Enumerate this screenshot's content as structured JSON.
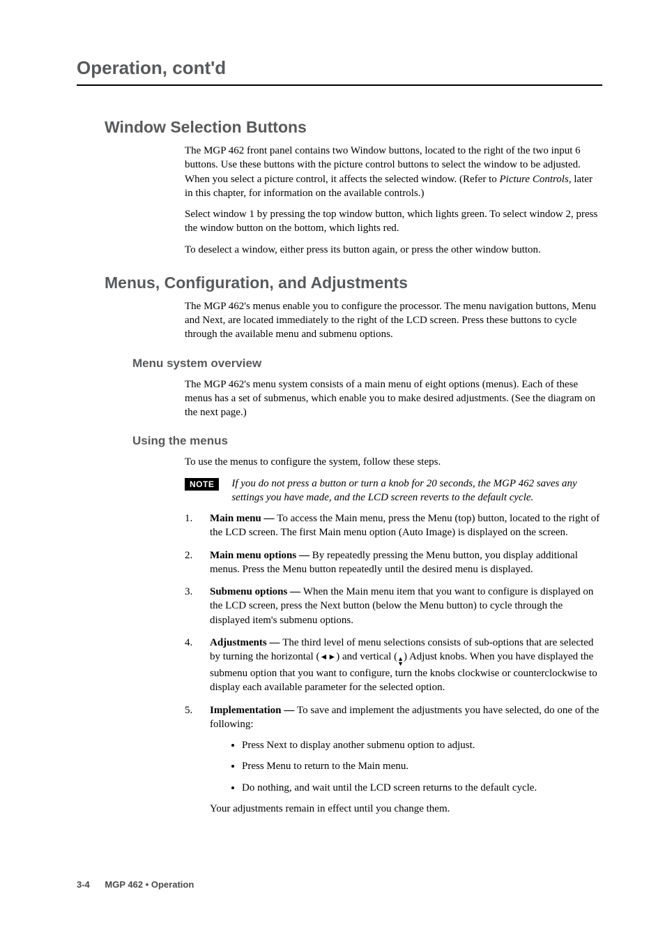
{
  "running_head": "Operation, cont'd",
  "sections": {
    "wsb": {
      "title": "Window Selection Buttons",
      "p1a": "The MGP 462 front panel contains two Window buttons, located to the right of the two input 6 buttons.  Use these buttons with the picture control buttons to select the window to be adjusted.  When you select a picture control, it affects the selected window.  (Refer to ",
      "p1b_italic": "Picture Controls",
      "p1c": ", later in this chapter, for information on the available controls.)",
      "p2": "Select window 1 by pressing the top window button, which lights green.  To select window 2, press the window button on the bottom, which lights red.",
      "p3": "To deselect a window, either press its button again, or press the other window button."
    },
    "mca": {
      "title": "Menus, Configuration, and Adjustments",
      "p1": "The MGP 462's menus enable you to configure the processor.  The menu navigation buttons, Menu and Next, are located immediately to the right of the LCD screen.  Press these buttons to cycle through the available menu and submenu options.",
      "mso": {
        "title": "Menu system overview",
        "p1": "The MGP 462's menu system consists of a main menu of eight options (menus).  Each of these menus has a set of submenus, which enable you to make desired adjustments.  (See the diagram on the next page.)"
      },
      "utm": {
        "title": "Using the menus",
        "intro": "To use the menus to configure the system, follow these steps.",
        "note_label": "NOTE",
        "note_text": "If you do not press a button or turn a knob for 20 seconds, the MGP 462 saves any settings you have made, and the LCD screen reverts to the default cycle.",
        "steps": {
          "s1_num": "1.",
          "s1_lead": "Main menu — ",
          "s1_body": "To access the Main menu, press the Menu (top) button, located to the right of the LCD screen.  The first Main menu option  (Auto Image) is displayed on the screen.",
          "s2_num": "2.",
          "s2_lead": "Main menu options — ",
          "s2_body": "By repeatedly pressing the Menu button, you display additional menus.  Press the Menu button repeatedly until the desired menu is displayed.",
          "s3_num": "3.",
          "s3_lead": "Submenu options — ",
          "s3_body": "When the Main menu item that you want to configure is displayed on the LCD screen, press the Next button (below the Menu button) to cycle through the displayed item's submenu options.",
          "s4_num": "4.",
          "s4_lead": "Adjustments — ",
          "s4_body_a": "The third level of menu selections consists of sub-options that are selected by turning the horizontal (",
          "s4_body_b": ") and vertical (",
          "s4_body_c": ") Adjust knobs.  When you have displayed the submenu option that you want to configure, turn the knobs clockwise or counterclockwise to display each available parameter for the selected option.",
          "s5_num": "5.",
          "s5_lead": "Implementation — ",
          "s5_body": "To save and implement the adjustments you have selected, do one of the following:",
          "s5_sub1": "Press Next to display another submenu option to adjust.",
          "s5_sub2": "Press Menu to return to the Main menu.",
          "s5_sub3": "Do nothing, and wait until the LCD screen returns to the default cycle.",
          "s5_tail": "Your adjustments remain in effect until you change them."
        }
      }
    }
  },
  "footer": {
    "page": "3-4",
    "label": "MGP 462 • Operation"
  }
}
